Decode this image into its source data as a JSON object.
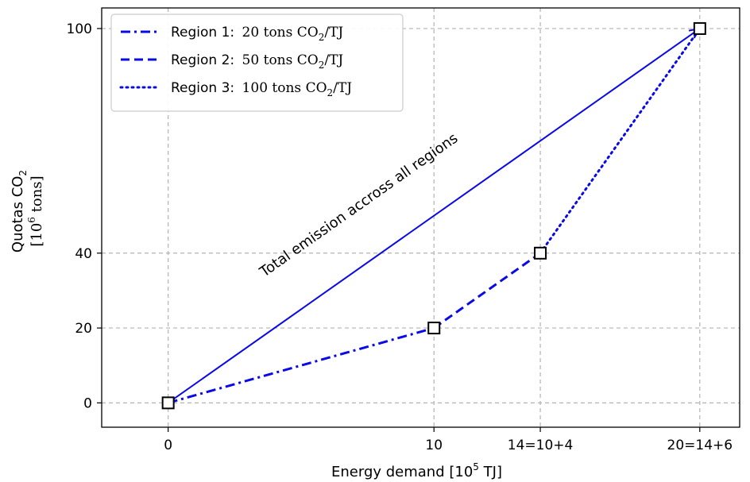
{
  "chart_data": {
    "type": "line",
    "xlabel": {
      "text": "Energy demand [10",
      "sup": "5",
      "suffix": " TJ]"
    },
    "ylabel": {
      "line1": "Quotas CO",
      "line1_sub": "2",
      "line2_prefix": "[10",
      "line2_sup": "6",
      "line2_suffix": " tons]"
    },
    "xlim": [
      -2.5,
      21.5
    ],
    "ylim": [
      -6.5,
      105.5
    ],
    "x_ticks": [
      {
        "value": 0,
        "label": "0"
      },
      {
        "value": 10,
        "label": "10"
      },
      {
        "value": 14,
        "label": "14=10+4"
      },
      {
        "value": 20,
        "label": "20=14+6"
      }
    ],
    "y_ticks": [
      {
        "value": 0,
        "label": "0"
      },
      {
        "value": 20,
        "label": "20"
      },
      {
        "value": 40,
        "label": "40"
      },
      {
        "value": 100,
        "label": "100"
      }
    ],
    "grid": true,
    "legend_position": "top-left",
    "color": "#0a0ae6",
    "series": [
      {
        "name": "Region 1:",
        "rate_value": "20",
        "rate_unit": "tons CO",
        "rate_sub": "2",
        "rate_tail": "/TJ",
        "style": "dashdot",
        "x": [
          0,
          10
        ],
        "y": [
          0,
          20
        ]
      },
      {
        "name": "Region 2:",
        "rate_value": "50",
        "rate_unit": "tons CO",
        "rate_sub": "2",
        "rate_tail": "/TJ",
        "style": "dashed",
        "x": [
          10,
          14
        ],
        "y": [
          20,
          40
        ]
      },
      {
        "name": "Region 3:",
        "rate_value": "100",
        "rate_unit": "tons CO",
        "rate_sub": "2",
        "rate_tail": "/TJ",
        "style": "dotted",
        "x": [
          14,
          20
        ],
        "y": [
          40,
          100
        ]
      }
    ],
    "total_arrow": {
      "from": [
        0,
        0
      ],
      "to": [
        20,
        100
      ],
      "label": "Total emission accross all regions"
    },
    "markers": [
      {
        "x": 0,
        "y": 0
      },
      {
        "x": 10,
        "y": 20
      },
      {
        "x": 14,
        "y": 40
      },
      {
        "x": 20,
        "y": 100
      }
    ]
  }
}
